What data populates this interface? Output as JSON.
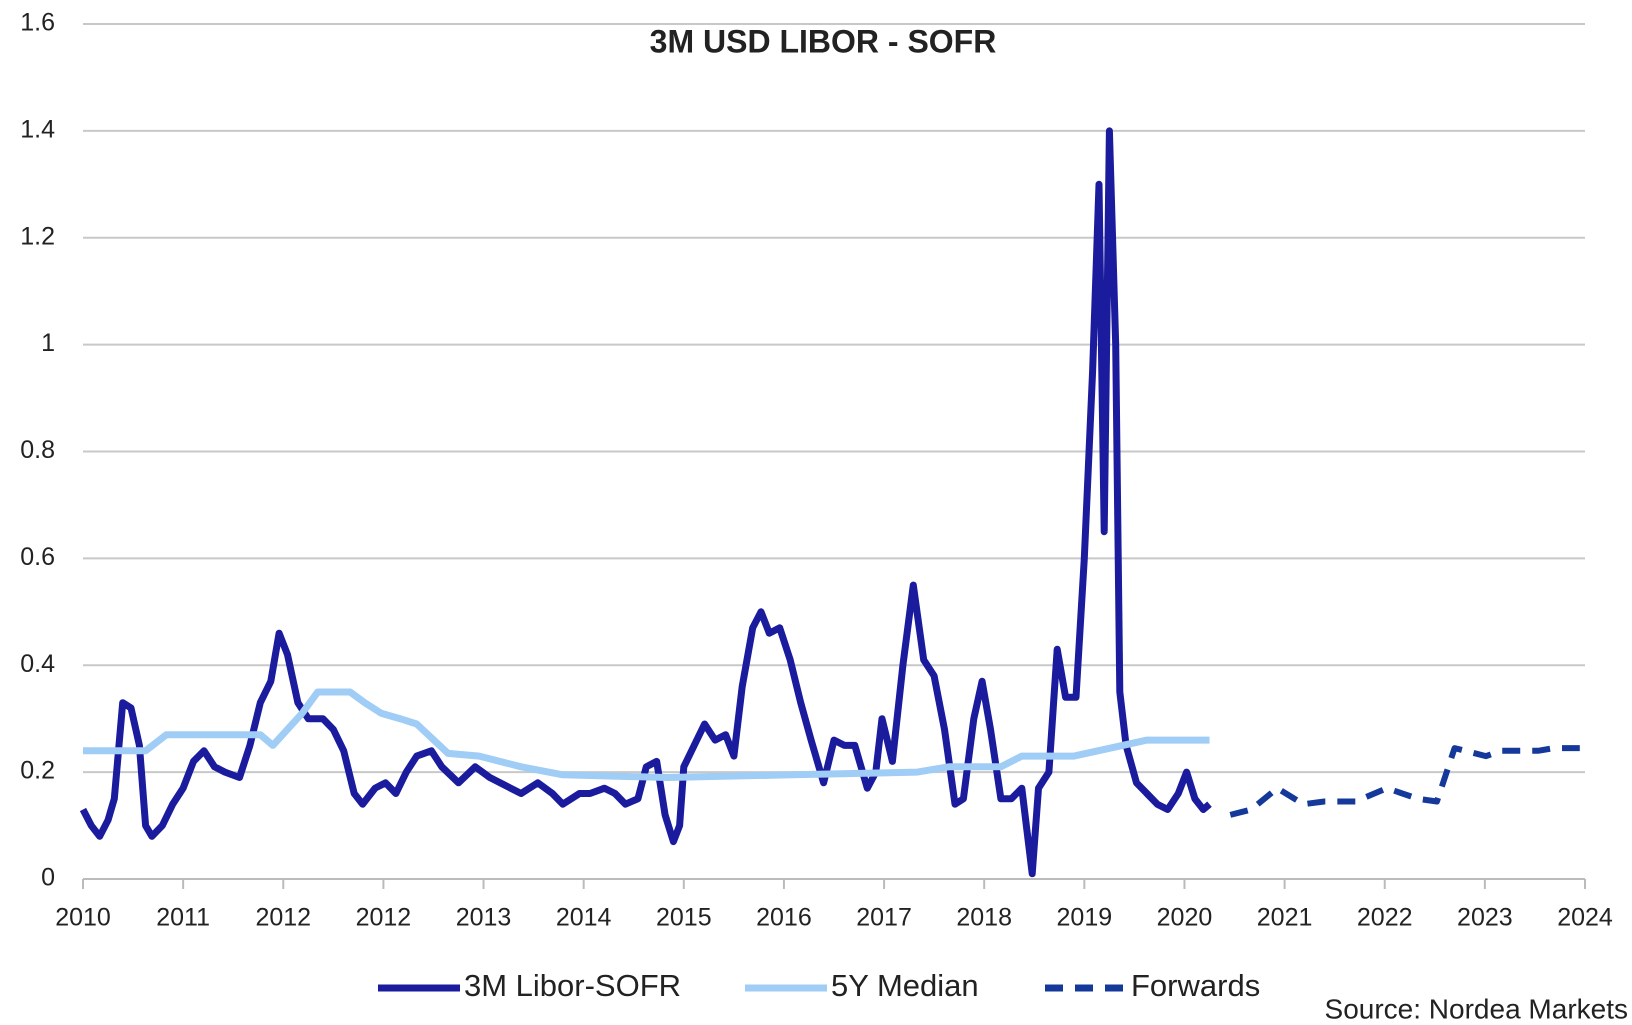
{
  "chart_data": {
    "type": "line",
    "title": "3M USD LIBOR - SOFR",
    "annotations": [
      "Source: Nordea Markets"
    ],
    "xlim": [
      0,
      15
    ],
    "xticks": [
      {
        "value": 0,
        "label": "2010"
      },
      {
        "value": 1,
        "label": "2011"
      },
      {
        "value": 2,
        "label": "2012"
      },
      {
        "value": 3,
        "label": "2012"
      },
      {
        "value": 4,
        "label": "2013"
      },
      {
        "value": 5,
        "label": "2014"
      },
      {
        "value": 6,
        "label": "2015"
      },
      {
        "value": 7,
        "label": "2016"
      },
      {
        "value": 8,
        "label": "2017"
      },
      {
        "value": 9,
        "label": "2018"
      },
      {
        "value": 10,
        "label": "2019"
      },
      {
        "value": 11,
        "label": "2020"
      },
      {
        "value": 12,
        "label": "2021"
      },
      {
        "value": 13,
        "label": "2022"
      },
      {
        "value": 14,
        "label": "2023"
      },
      {
        "value": 15,
        "label": "2024"
      }
    ],
    "ylim": [
      0,
      1.6
    ],
    "yticks": [
      0,
      0.2,
      0.4,
      0.6,
      0.8,
      1,
      1.2,
      1.4,
      1.6
    ],
    "grid": true,
    "series": [
      {
        "name": "3M Libor-SOFR",
        "color": "#1b1b9e",
        "dashed": false,
        "x": [
          0,
          0.083,
          0.167,
          0.25,
          0.313,
          0.396,
          0.479,
          0.563,
          0.625,
          0.688,
          0.792,
          0.896,
          1,
          1.104,
          1.208,
          1.313,
          1.417,
          1.563,
          1.667,
          1.771,
          1.875,
          1.958,
          2.042,
          2.146,
          2.25,
          2.396,
          2.5,
          2.604,
          2.708,
          2.792,
          2.917,
          3.021,
          3.125,
          3.229,
          3.333,
          3.479,
          3.583,
          3.75,
          3.917,
          4.063,
          4.271,
          4.375,
          4.542,
          4.688,
          4.792,
          4.958,
          5.063,
          5.208,
          5.313,
          5.417,
          5.542,
          5.625,
          5.729,
          5.813,
          5.896,
          5.958,
          6,
          6.104,
          6.208,
          6.313,
          6.417,
          6.5,
          6.583,
          6.688,
          6.771,
          6.854,
          6.958,
          7.063,
          7.167,
          7.271,
          7.396,
          7.5,
          7.604,
          7.708,
          7.833,
          7.917,
          7.979,
          8.083,
          8.188,
          8.292,
          8.396,
          8.5,
          8.604,
          8.708,
          8.792,
          8.896,
          8.979,
          9.063,
          9.167,
          9.271,
          9.375,
          9.479,
          9.542,
          9.646,
          9.729,
          9.813,
          9.917,
          10,
          10.083,
          10.146,
          10.198,
          10.25,
          10.313,
          10.354,
          10.417,
          10.521,
          10.625,
          10.729,
          10.833,
          10.938,
          11.021,
          11.104,
          11.188,
          11.25
        ],
        "values": [
          0.13,
          0.1,
          0.08,
          0.11,
          0.15,
          0.33,
          0.32,
          0.25,
          0.1,
          0.08,
          0.1,
          0.14,
          0.17,
          0.22,
          0.24,
          0.21,
          0.2,
          0.19,
          0.25,
          0.33,
          0.37,
          0.46,
          0.42,
          0.33,
          0.3,
          0.3,
          0.28,
          0.24,
          0.16,
          0.14,
          0.17,
          0.18,
          0.16,
          0.2,
          0.23,
          0.24,
          0.21,
          0.18,
          0.21,
          0.19,
          0.17,
          0.16,
          0.18,
          0.16,
          0.14,
          0.16,
          0.16,
          0.17,
          0.16,
          0.14,
          0.15,
          0.21,
          0.22,
          0.12,
          0.07,
          0.1,
          0.21,
          0.25,
          0.29,
          0.26,
          0.27,
          0.23,
          0.36,
          0.47,
          0.5,
          0.46,
          0.47,
          0.41,
          0.33,
          0.26,
          0.18,
          0.26,
          0.25,
          0.25,
          0.17,
          0.2,
          0.3,
          0.22,
          0.4,
          0.55,
          0.41,
          0.38,
          0.28,
          0.14,
          0.15,
          0.3,
          0.37,
          0.28,
          0.15,
          0.15,
          0.17,
          0.01,
          0.17,
          0.2,
          0.43,
          0.34,
          0.34,
          0.6,
          0.95,
          1.3,
          0.65,
          1.4,
          1.0,
          0.35,
          0.25,
          0.18,
          0.16,
          0.14,
          0.13,
          0.16,
          0.2,
          0.15,
          0.13,
          0.14
        ]
      },
      {
        "name": "5Y Median",
        "color": "#9fcdf5",
        "dashed": false,
        "x": [
          0,
          0.625,
          0.833,
          1.771,
          1.896,
          2.188,
          2.344,
          2.667,
          2.813,
          2.979,
          3.167,
          3.333,
          3.646,
          3.958,
          4.375,
          4.792,
          5.833,
          7.083,
          8.333,
          8.646,
          9.167,
          9.375,
          9.896,
          10.625,
          11.25
        ],
        "values": [
          0.24,
          0.24,
          0.27,
          0.27,
          0.25,
          0.31,
          0.35,
          0.35,
          0.33,
          0.31,
          0.3,
          0.29,
          0.235,
          0.23,
          0.21,
          0.195,
          0.19,
          0.195,
          0.2,
          0.21,
          0.21,
          0.23,
          0.23,
          0.26,
          0.26
        ]
      },
      {
        "name": "Forwards",
        "color": "#14399a",
        "dashed": true,
        "x": [
          11.458,
          11.667,
          11.927,
          12.188,
          12.396,
          12.708,
          13.021,
          13.333,
          13.521,
          13.698,
          14.01,
          14.167,
          14.531,
          14.688,
          14.948
        ],
        "values": [
          0.12,
          0.13,
          0.17,
          0.14,
          0.145,
          0.145,
          0.17,
          0.15,
          0.145,
          0.245,
          0.23,
          0.24,
          0.24,
          0.245,
          0.245
        ]
      }
    ]
  }
}
